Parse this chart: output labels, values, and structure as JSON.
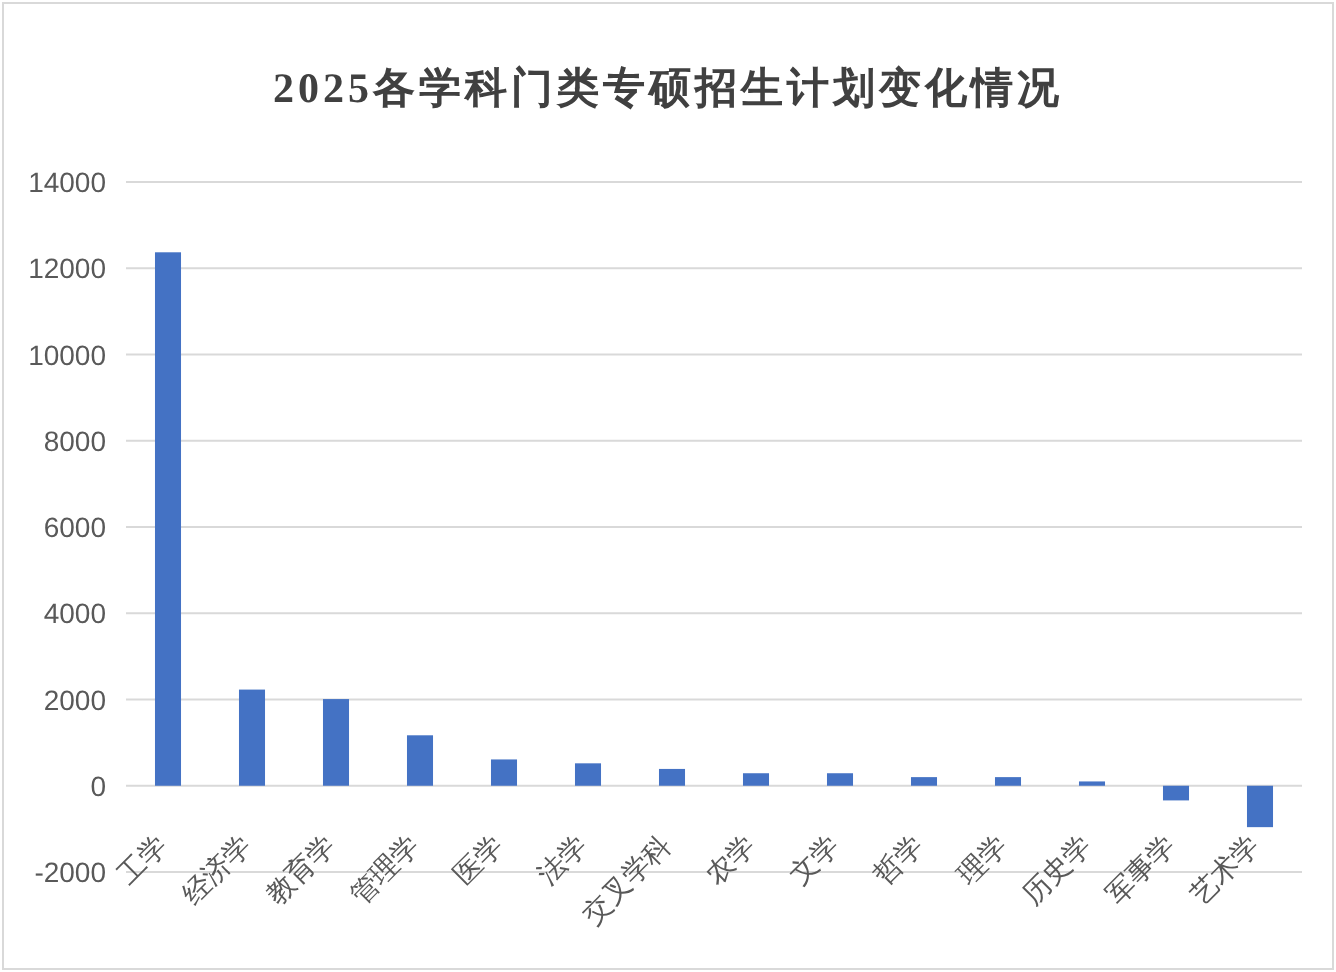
{
  "chart_data": {
    "type": "bar",
    "title": "2025各学科门类专硕招生计划变化情况",
    "categories": [
      "工学",
      "经济学",
      "教育学",
      "管理学",
      "医学",
      "法学",
      "交叉学科",
      "农学",
      "文学",
      "哲学",
      "理学",
      "历史学",
      "军事学",
      "艺术学"
    ],
    "values": [
      12370,
      2230,
      2010,
      1170,
      610,
      520,
      390,
      290,
      290,
      200,
      200,
      100,
      -340,
      -960
    ],
    "color": "#4472c4",
    "ylim": [
      -2000,
      14000
    ],
    "yticks": [
      -2000,
      0,
      2000,
      4000,
      6000,
      8000,
      10000,
      12000,
      14000
    ],
    "grid": "y"
  }
}
